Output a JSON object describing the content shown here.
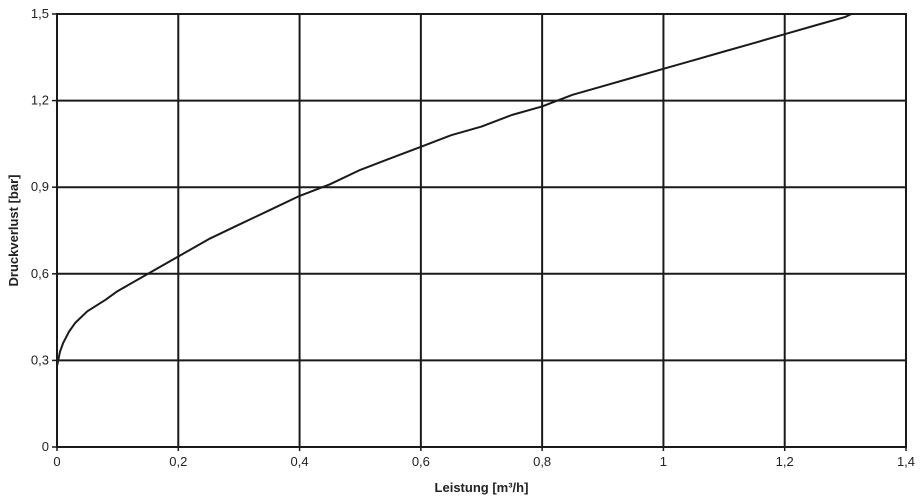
{
  "chart_data": {
    "type": "line",
    "title": "",
    "xlabel": "Leistung [m³/h]",
    "ylabel": "Druckverlust  [bar]",
    "xlim": [
      0,
      1.4
    ],
    "ylim": [
      0,
      1.5
    ],
    "x_ticks": [
      0,
      0.2,
      0.4,
      0.6,
      0.8,
      1.0,
      1.2,
      1.4
    ],
    "x_tick_labels": [
      "0",
      "0,2",
      "0,4",
      "0,6",
      "0,8",
      "1",
      "1,2",
      "1,4"
    ],
    "y_ticks": [
      0,
      0.3,
      0.6,
      0.9,
      1.2,
      1.5
    ],
    "y_tick_labels": [
      "0",
      "0,3",
      "0,6",
      "0,9",
      "1,2",
      "1,5"
    ],
    "grid": true,
    "series": [
      {
        "x": [
          0.0,
          0.0,
          0.002,
          0.005,
          0.01,
          0.02,
          0.03,
          0.05,
          0.08,
          0.1,
          0.15,
          0.2,
          0.25,
          0.3,
          0.35,
          0.4,
          0.45,
          0.5,
          0.55,
          0.6,
          0.65,
          0.7,
          0.75,
          0.8,
          0.85,
          0.9,
          0.95,
          1.0,
          1.05,
          1.1,
          1.15,
          1.2,
          1.25,
          1.3,
          1.31
        ],
        "y": [
          0.0,
          0.28,
          0.3,
          0.33,
          0.36,
          0.4,
          0.43,
          0.47,
          0.51,
          0.54,
          0.6,
          0.66,
          0.72,
          0.77,
          0.82,
          0.87,
          0.91,
          0.96,
          1.0,
          1.04,
          1.08,
          1.11,
          1.15,
          1.18,
          1.22,
          1.25,
          1.28,
          1.31,
          1.34,
          1.37,
          1.4,
          1.43,
          1.46,
          1.49,
          1.5
        ]
      }
    ],
    "colors": {
      "line": "#1a1a1a",
      "grid": "#1a1a1a",
      "background": "#ffffff"
    }
  }
}
